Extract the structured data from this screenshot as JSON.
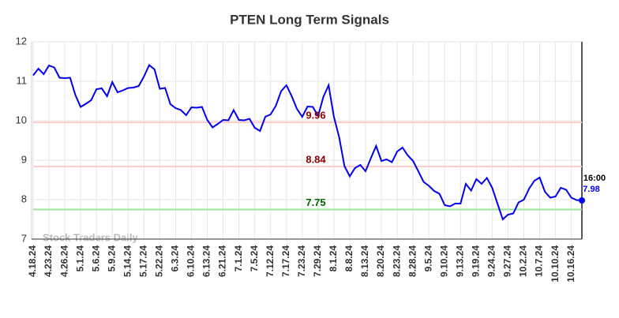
{
  "chart_data": {
    "type": "line",
    "title": "PTEN Long Term Signals",
    "categories": [
      "4.18.24",
      null,
      null,
      "4.23.24",
      null,
      null,
      "4.26.24",
      null,
      null,
      "5.1.24",
      null,
      null,
      "5.6.24",
      null,
      null,
      "5.9.24",
      null,
      null,
      "5.14.24",
      null,
      null,
      "5.17.24",
      null,
      null,
      "5.22.24",
      null,
      null,
      "6.3.24",
      null,
      null,
      "6.10.24",
      null,
      null,
      "6.13.24",
      null,
      null,
      "6.21.24",
      null,
      null,
      "7.1.24",
      null,
      null,
      "7.5.24",
      null,
      null,
      "7.12.24",
      null,
      null,
      "7.17.24",
      null,
      null,
      "7.23.24",
      null,
      null,
      "7.29.24",
      null,
      null,
      "8.1.24",
      null,
      null,
      "8.8.24",
      null,
      null,
      "8.13.24",
      null,
      null,
      "8.20.24",
      null,
      null,
      "8.23.24",
      null,
      null,
      "8.28.24",
      null,
      null,
      "9.5.24",
      null,
      null,
      "9.10.24",
      null,
      null,
      "9.13.24",
      null,
      null,
      "9.19.24",
      null,
      null,
      "9.24.24",
      null,
      null,
      "9.27.24",
      null,
      null,
      "10.2.24",
      null,
      null,
      "10.7.24",
      null,
      null,
      "10.10.24",
      null,
      null,
      "10.16.24",
      null,
      null
    ],
    "series": [
      {
        "name": "PTEN",
        "color": "#0000ee",
        "values": [
          11.15,
          11.32,
          11.18,
          11.4,
          11.35,
          11.09,
          11.08,
          11.09,
          10.65,
          10.35,
          10.43,
          10.52,
          10.8,
          10.82,
          10.62,
          10.98,
          10.72,
          10.77,
          10.83,
          10.84,
          10.88,
          11.12,
          11.41,
          11.3,
          10.81,
          10.83,
          10.42,
          10.32,
          10.27,
          10.14,
          10.34,
          10.33,
          10.35,
          10.02,
          9.83,
          9.92,
          10.02,
          10.01,
          10.27,
          10.02,
          10.01,
          10.05,
          9.82,
          9.74,
          10.1,
          10.16,
          10.38,
          10.75,
          10.9,
          10.62,
          10.3,
          10.1,
          10.36,
          10.35,
          10.12,
          10.6,
          10.9,
          10.1,
          9.58,
          8.85,
          8.59,
          8.8,
          8.88,
          8.72,
          9.05,
          9.36,
          8.98,
          9.02,
          8.95,
          9.22,
          9.32,
          9.12,
          8.98,
          8.72,
          8.45,
          8.35,
          8.22,
          8.15,
          7.86,
          7.83,
          7.9,
          7.9,
          8.4,
          8.23,
          8.52,
          8.4,
          8.55,
          8.3,
          7.9,
          7.5,
          7.62,
          7.65,
          7.93,
          8.0,
          8.28,
          8.48,
          8.56,
          8.2,
          8.05,
          8.08,
          8.3,
          8.25,
          8.05,
          7.99,
          7.98
        ]
      }
    ],
    "levels": [
      {
        "value": 9.96,
        "color": "#ffcccc",
        "label_color": "#8b0000"
      },
      {
        "value": 8.84,
        "color": "#ffcccc",
        "label_color": "#8b0000"
      },
      {
        "value": 7.75,
        "color": "#99e699",
        "label_color": "#006400"
      }
    ],
    "last_time": "16:00",
    "watermark": "Stock Traders Daily",
    "ylim": [
      7,
      12
    ],
    "yticks": [
      7,
      8,
      9,
      10,
      11,
      12
    ],
    "grid": true
  }
}
